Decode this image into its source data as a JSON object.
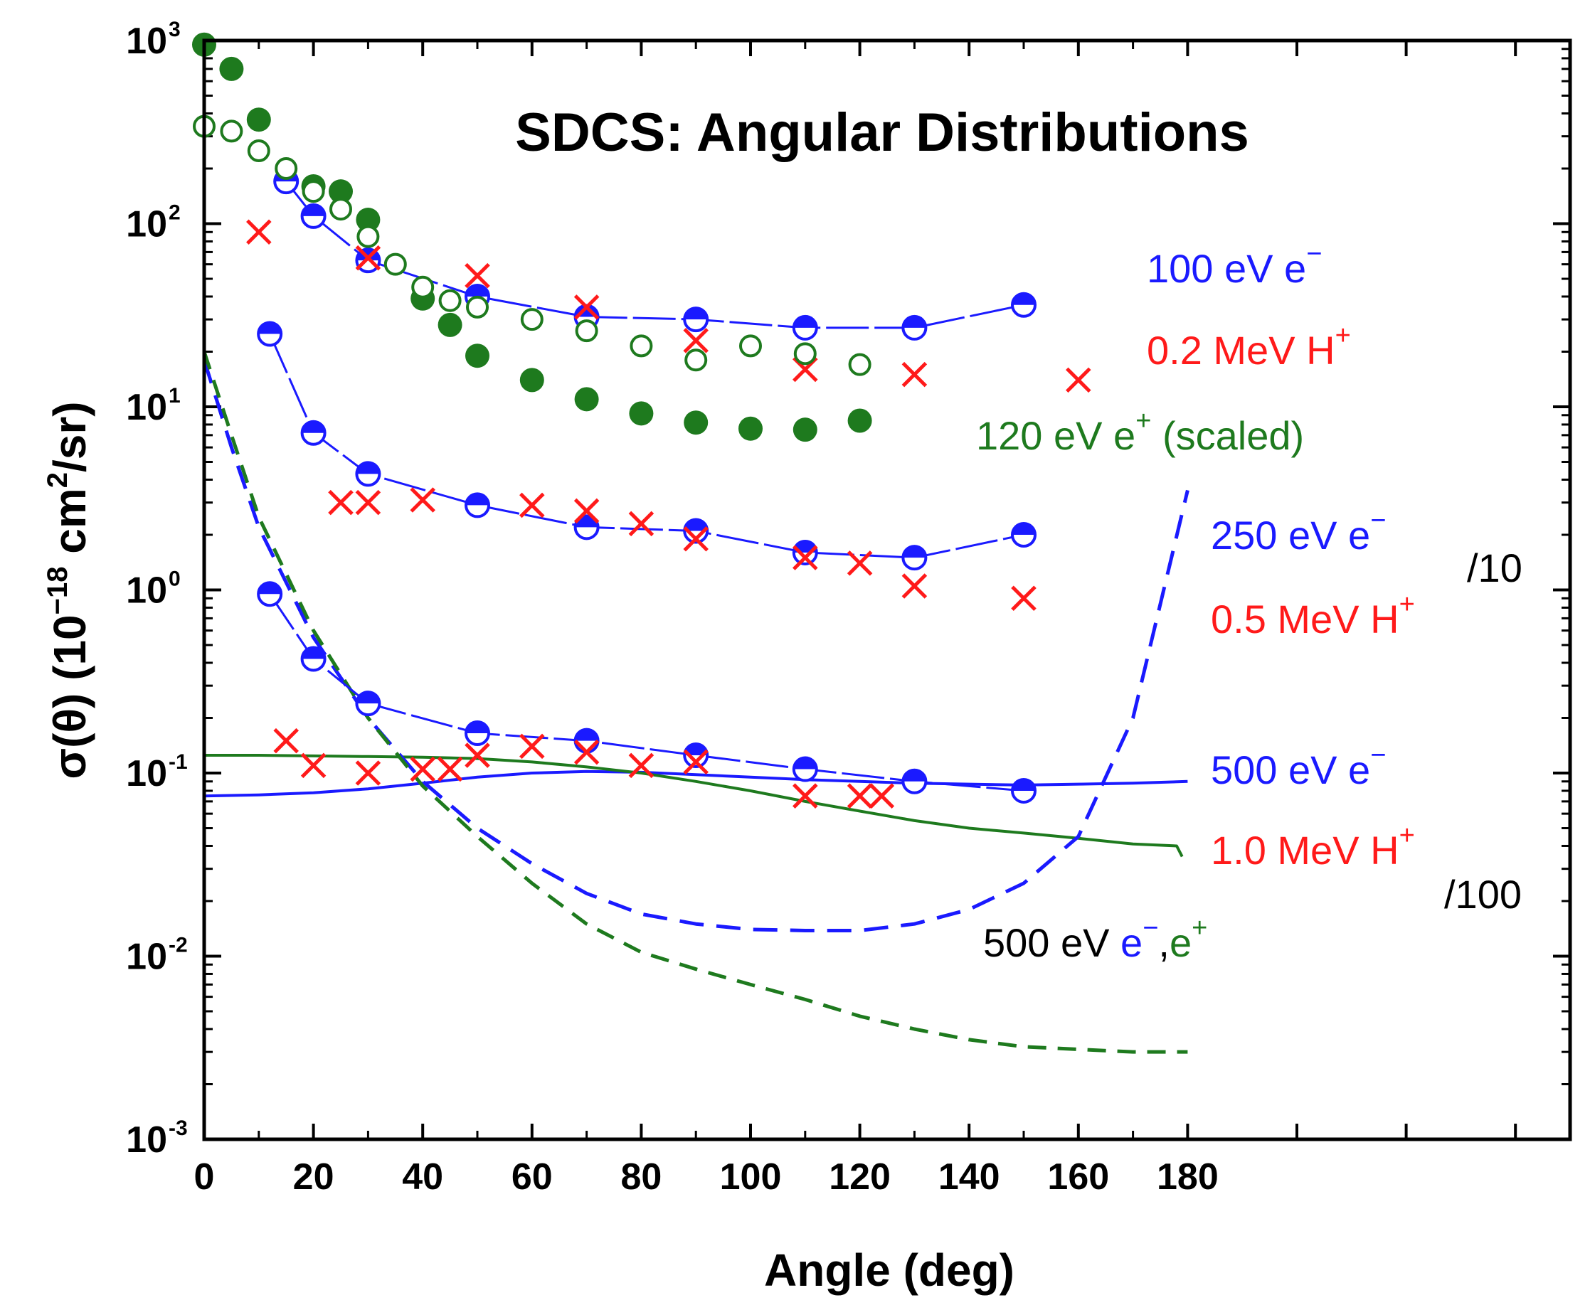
{
  "colors": {
    "blue": "#1a1aff",
    "red": "#ff1a1a",
    "green": "#1e7a1e",
    "black": "#000000"
  },
  "chart_data": {
    "type": "scatter",
    "title": "SDCS: Angular Distributions",
    "xlabel": "Angle (deg)",
    "ylabel": {
      "main": "σ(θ) (10",
      "exp": "−18",
      "mid": " cm",
      "exp2": "2",
      "tail": "/sr)"
    },
    "xlim": [
      0,
      250
    ],
    "ylim": [
      0.001,
      1000
    ],
    "yscale": "log",
    "x_ticks": [
      0,
      20,
      40,
      60,
      80,
      100,
      120,
      140,
      160,
      180
    ],
    "x_tick_labels": [
      "0",
      "20",
      "40",
      "60",
      "80",
      "100",
      "120",
      "140",
      "160",
      "180"
    ],
    "y_ticks": [
      {
        "value": 1000,
        "base": "10",
        "exp": "3"
      },
      {
        "value": 100,
        "base": "10",
        "exp": "2"
      },
      {
        "value": 10,
        "base": "10",
        "exp": "1"
      },
      {
        "value": 1,
        "base": "10",
        "exp": "0"
      },
      {
        "value": 0.1,
        "base": "10",
        "exp": "-1"
      },
      {
        "value": 0.01,
        "base": "10",
        "exp": "-2"
      },
      {
        "value": 0.001,
        "base": "10",
        "exp": "-3"
      }
    ],
    "series": [
      {
        "name": "100 eV e−",
        "marker": "half-circle",
        "color": "blue",
        "connect": true,
        "x": [
          15,
          20,
          30,
          50,
          70,
          90,
          110,
          130,
          150
        ],
        "y": [
          170,
          110,
          63,
          40,
          31,
          30,
          27,
          27,
          36
        ]
      },
      {
        "name": "250 eV e− /10",
        "marker": "half-circle",
        "color": "blue",
        "connect": true,
        "x": [
          12,
          20,
          30,
          50,
          70,
          90,
          110,
          130,
          150
        ],
        "y": [
          25,
          7.2,
          4.3,
          2.9,
          2.2,
          2.1,
          1.6,
          1.5,
          2.0
        ]
      },
      {
        "name": "500 eV e− /100",
        "marker": "half-circle",
        "color": "blue",
        "connect": true,
        "x": [
          12,
          20,
          30,
          50,
          70,
          90,
          110,
          130,
          150
        ],
        "y": [
          0.95,
          0.42,
          0.24,
          0.165,
          0.15,
          0.125,
          0.105,
          0.09,
          0.08
        ]
      },
      {
        "name": "0.2 MeV H+",
        "marker": "x",
        "color": "red",
        "connect": false,
        "x": [
          10,
          30,
          50,
          70,
          90,
          110,
          130,
          160
        ],
        "y": [
          90,
          65,
          52,
          35,
          23,
          16,
          15,
          14
        ]
      },
      {
        "name": "0.5 MeV H+ /10",
        "marker": "x",
        "color": "red",
        "connect": false,
        "x": [
          25,
          30,
          40,
          60,
          70,
          80,
          90,
          110,
          120,
          130,
          150
        ],
        "y": [
          3.0,
          3.0,
          3.1,
          2.9,
          2.7,
          2.3,
          1.9,
          1.5,
          1.4,
          1.05,
          0.9
        ]
      },
      {
        "name": "1.0 MeV H+ /100",
        "marker": "x",
        "color": "red",
        "connect": false,
        "x": [
          15,
          20,
          30,
          40,
          45,
          50,
          60,
          70,
          80,
          90,
          110,
          120,
          124
        ],
        "y": [
          0.15,
          0.11,
          0.1,
          0.105,
          0.105,
          0.125,
          0.14,
          0.13,
          0.11,
          0.115,
          0.075,
          0.075,
          0.075
        ]
      },
      {
        "name": "120 eV e+ (scaled) filled",
        "marker": "filled-circle",
        "color": "green",
        "connect": false,
        "x": [
          0,
          5,
          10,
          20,
          25,
          30,
          40,
          45,
          50,
          60,
          70,
          80,
          90,
          100,
          110,
          120
        ],
        "y": [
          950,
          700,
          370,
          160,
          150,
          105,
          39,
          28,
          19,
          14,
          11,
          9.2,
          8.2,
          7.6,
          7.5,
          8.4
        ]
      },
      {
        "name": "120 eV e+ (scaled) open",
        "marker": "open-circle",
        "color": "green",
        "connect": false,
        "x": [
          0,
          5,
          10,
          15,
          20,
          25,
          30,
          35,
          40,
          45,
          50,
          60,
          70,
          80,
          90,
          100,
          110,
          120
        ],
        "y": [
          340,
          320,
          250,
          200,
          150,
          120,
          85,
          60,
          45,
          38,
          35,
          30,
          26,
          21.5,
          18,
          21.5,
          19.5,
          17
        ]
      },
      {
        "name": "500 eV e− solid",
        "style": "solid",
        "color": "blue",
        "x": [
          0,
          10,
          20,
          30,
          40,
          50,
          60,
          70,
          80,
          90,
          100,
          110,
          120,
          130,
          140,
          150,
          160,
          170,
          180
        ],
        "y": [
          0.075,
          0.076,
          0.078,
          0.082,
          0.088,
          0.095,
          0.1,
          0.102,
          0.101,
          0.098,
          0.095,
          0.092,
          0.09,
          0.088,
          0.087,
          0.086,
          0.087,
          0.088,
          0.09
        ]
      },
      {
        "name": "500 eV e+ solid",
        "style": "solid",
        "color": "green",
        "x": [
          0,
          10,
          20,
          30,
          40,
          50,
          60,
          70,
          80,
          90,
          100,
          110,
          120,
          130,
          140,
          150,
          160,
          170,
          178,
          179
        ],
        "y": [
          0.125,
          0.125,
          0.124,
          0.123,
          0.122,
          0.12,
          0.115,
          0.108,
          0.1,
          0.09,
          0.08,
          0.07,
          0.062,
          0.055,
          0.05,
          0.047,
          0.044,
          0.041,
          0.04,
          0.035
        ]
      },
      {
        "name": "500 eV e− dashed",
        "style": "dashed",
        "color": "blue",
        "x": [
          0,
          5,
          10,
          20,
          30,
          40,
          50,
          60,
          70,
          80,
          90,
          100,
          110,
          120,
          130,
          140,
          150,
          160,
          170,
          180
        ],
        "y": [
          18,
          6,
          2.2,
          0.55,
          0.2,
          0.09,
          0.05,
          0.032,
          0.022,
          0.017,
          0.015,
          0.014,
          0.0138,
          0.0138,
          0.015,
          0.018,
          0.025,
          0.045,
          0.2,
          3.5
        ]
      },
      {
        "name": "500 eV e+ dashed",
        "style": "dashed",
        "color": "green",
        "x": [
          0,
          5,
          10,
          20,
          30,
          40,
          50,
          60,
          70,
          80,
          90,
          100,
          110,
          120,
          130,
          140,
          150,
          160,
          170,
          180
        ],
        "y": [
          20,
          7,
          2.5,
          0.6,
          0.2,
          0.085,
          0.045,
          0.025,
          0.015,
          0.0105,
          0.0085,
          0.007,
          0.0058,
          0.0047,
          0.004,
          0.0035,
          0.0032,
          0.0031,
          0.003,
          0.003
        ]
      }
    ]
  },
  "annotations": {
    "e100": {
      "text": "100 eV e",
      "sup": "−"
    },
    "h02": {
      "text": "0.2 MeV H",
      "sup": "+"
    },
    "e120": {
      "text": "120 eV e",
      "sup": "+",
      "rest": " (scaled)"
    },
    "e250": {
      "text": "250 eV e",
      "sup": "−"
    },
    "div10": "/10",
    "h05": {
      "text": "0.5 MeV H",
      "sup": "+"
    },
    "e500": {
      "text": "500 eV e",
      "sup": "−"
    },
    "h10": {
      "text": "1.0 MeV H",
      "sup": "+"
    },
    "div100": "/100",
    "e500pair": {
      "prefix": "500 eV ",
      "e_minus": "e",
      "minus_sup": "−",
      "comma": ",",
      "e_plus": "e",
      "plus_sup": "+"
    }
  }
}
